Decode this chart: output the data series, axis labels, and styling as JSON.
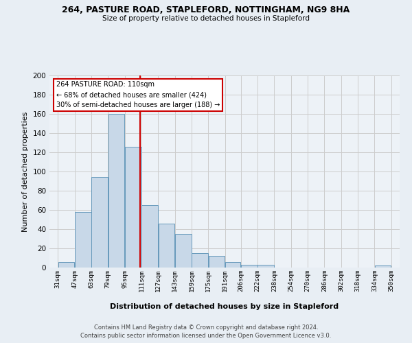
{
  "title1": "264, PASTURE ROAD, STAPLEFORD, NOTTINGHAM, NG9 8HA",
  "title2": "Size of property relative to detached houses in Stapleford",
  "xlabel": "Distribution of detached houses by size in Stapleford",
  "ylabel": "Number of detached properties",
  "bar_left_edges": [
    31,
    47,
    63,
    79,
    95,
    111,
    127,
    143,
    159,
    175,
    191,
    206,
    222,
    238,
    254,
    270,
    286,
    302,
    318,
    334
  ],
  "bar_heights": [
    6,
    58,
    94,
    160,
    126,
    65,
    46,
    35,
    15,
    12,
    6,
    3,
    3,
    0,
    0,
    0,
    0,
    0,
    0,
    2
  ],
  "bar_widths": [
    16,
    16,
    16,
    16,
    16,
    16,
    16,
    16,
    16,
    16,
    15,
    16,
    16,
    16,
    16,
    16,
    16,
    16,
    16,
    16
  ],
  "tick_labels": [
    "31sqm",
    "47sqm",
    "63sqm",
    "79sqm",
    "95sqm",
    "111sqm",
    "127sqm",
    "143sqm",
    "159sqm",
    "175sqm",
    "191sqm",
    "206sqm",
    "222sqm",
    "238sqm",
    "254sqm",
    "270sqm",
    "286sqm",
    "302sqm",
    "318sqm",
    "334sqm",
    "350sqm"
  ],
  "tick_positions": [
    31,
    47,
    63,
    79,
    95,
    111,
    127,
    143,
    159,
    175,
    191,
    206,
    222,
    238,
    254,
    270,
    286,
    302,
    318,
    334,
    350
  ],
  "bar_color": "#c8d8e8",
  "bar_edge_color": "#6699bb",
  "vline_x": 110,
  "vline_color": "#cc0000",
  "ann_line1": "264 PASTURE ROAD: 110sqm",
  "ann_line2": "← 68% of detached houses are smaller (424)",
  "ann_line3": "30% of semi-detached houses are larger (188) →",
  "annotation_box_color": "#cc0000",
  "annotation_box_fill": "#ffffff",
  "ylim": [
    0,
    200
  ],
  "yticks": [
    0,
    20,
    40,
    60,
    80,
    100,
    120,
    140,
    160,
    180,
    200
  ],
  "grid_color": "#cccccc",
  "background_color": "#e8eef4",
  "plot_bg_color": "#edf2f7",
  "footer1": "Contains HM Land Registry data © Crown copyright and database right 2024.",
  "footer2": "Contains public sector information licensed under the Open Government Licence v3.0."
}
